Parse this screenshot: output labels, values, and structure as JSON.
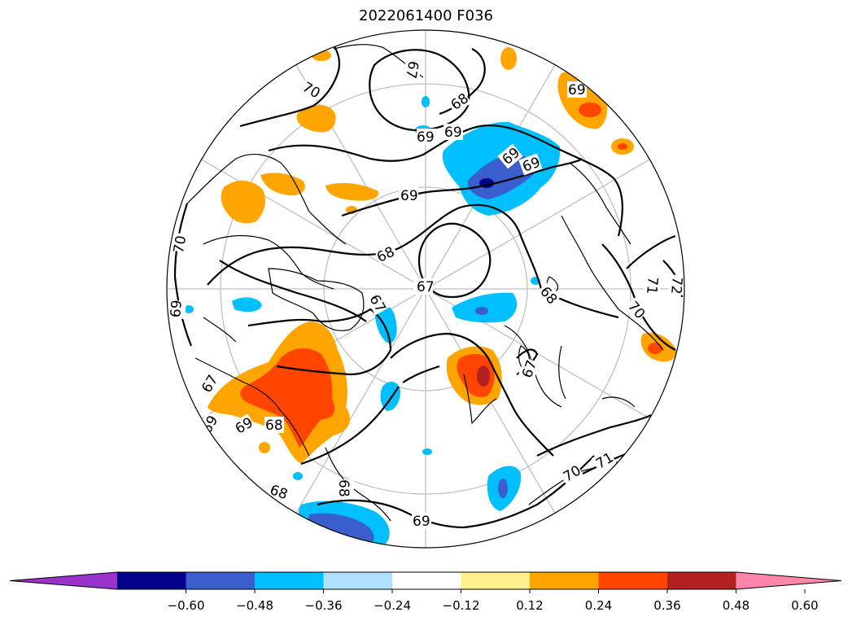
{
  "title": "2022061400 F036",
  "colorbar": {
    "colors": [
      "#9933cc",
      "#00008b",
      "#3a5fcd",
      "#00bfff",
      "#b0e2ff",
      "#ffffff",
      "#fff08c",
      "#ffa500",
      "#ff4500",
      "#b22222",
      "#ff88aa"
    ],
    "tick_labels": [
      "−0.60",
      "−0.48",
      "−0.36",
      "−0.24",
      "−0.12",
      "0.12",
      "0.24",
      "0.36",
      "0.48",
      "0.60"
    ]
  },
  "contour_labels": [
    "67",
    "68",
    "69",
    "70",
    "69",
    "68",
    "69",
    "69",
    "70",
    "68",
    "67",
    "67",
    "68",
    "70",
    "71",
    "72",
    "69",
    "68",
    "68",
    "67",
    "69",
    "67",
    "70",
    "69",
    "69",
    "71",
    "69",
    "69"
  ]
}
